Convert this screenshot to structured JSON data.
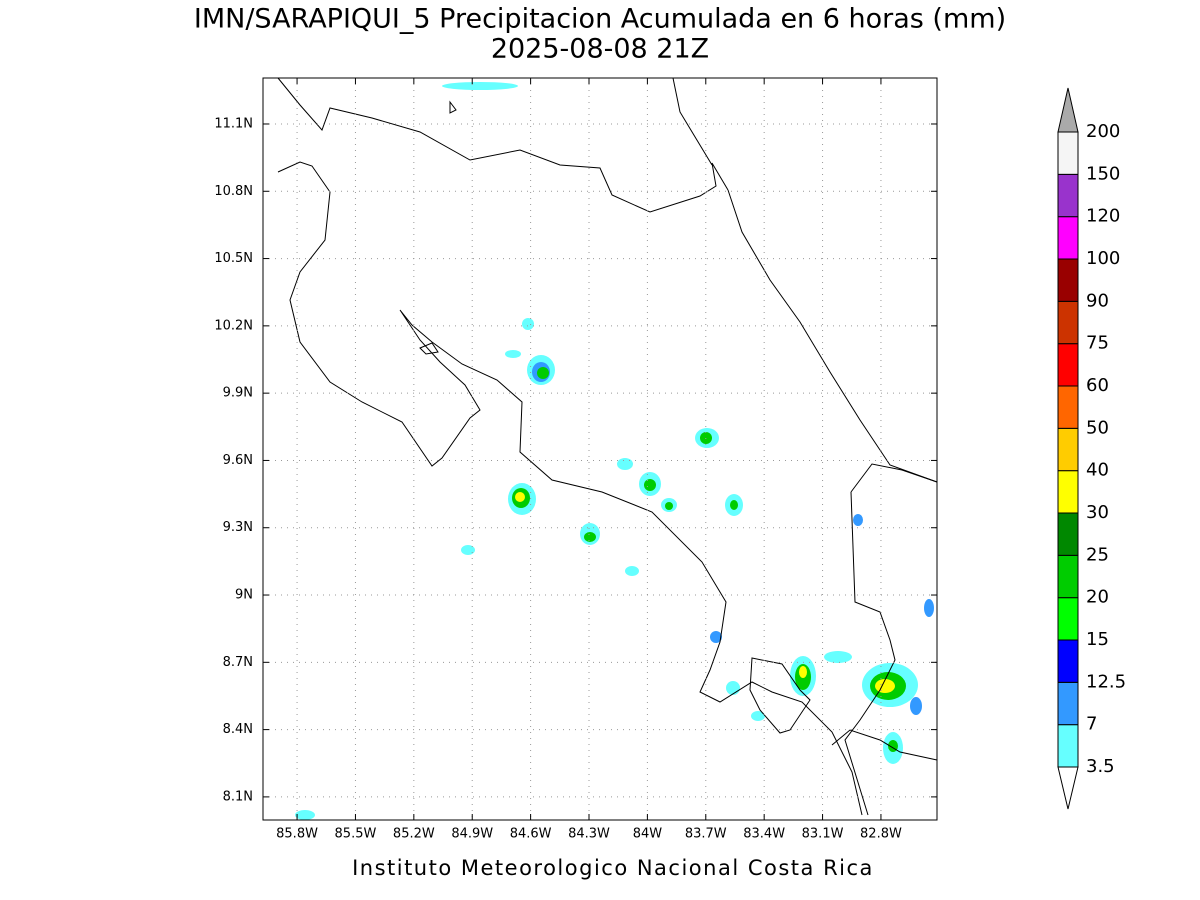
{
  "map": {
    "title": "IMN/SARAPIQUI_5 Precipitacion Acumulada en 6 horas (mm)",
    "subtitle": "2025-08-08 21Z",
    "footer": "Instituto Meteorologico Nacional Costa Rica",
    "xlim": [
      -85.975,
      -82.512
    ],
    "ylim": [
      7.997,
      11.305
    ],
    "xticks": [
      {
        "value": -85.8,
        "label": "85.8W"
      },
      {
        "value": -85.5,
        "label": "85.5W"
      },
      {
        "value": -85.2,
        "label": "85.2W"
      },
      {
        "value": -84.9,
        "label": "84.9W"
      },
      {
        "value": -84.6,
        "label": "84.6W"
      },
      {
        "value": -84.3,
        "label": "84.3W"
      },
      {
        "value": -84.0,
        "label": "84W"
      },
      {
        "value": -83.7,
        "label": "83.7W"
      },
      {
        "value": -83.4,
        "label": "83.4W"
      },
      {
        "value": -83.1,
        "label": "83.1W"
      },
      {
        "value": -82.8,
        "label": "82.8W"
      }
    ],
    "yticks": [
      {
        "value": 8.1,
        "label": "8.1N"
      },
      {
        "value": 8.4,
        "label": "8.4N"
      },
      {
        "value": 8.7,
        "label": "8.7N"
      },
      {
        "value": 9.0,
        "label": "9N"
      },
      {
        "value": 9.3,
        "label": "9.3N"
      },
      {
        "value": 9.6,
        "label": "9.6N"
      },
      {
        "value": 9.9,
        "label": "9.9N"
      },
      {
        "value": 10.2,
        "label": "10.2N"
      },
      {
        "value": 10.5,
        "label": "10.5N"
      },
      {
        "value": 10.8,
        "label": "10.8N"
      },
      {
        "value": 11.1,
        "label": "11.1N"
      }
    ],
    "grid": true,
    "colorbar": {
      "levels": [
        3.5,
        7,
        12.5,
        15,
        20,
        25,
        30,
        40,
        50,
        60,
        75,
        90,
        100,
        120,
        150,
        200
      ],
      "colors": [
        "#66ffff",
        "#3399ff",
        "#0000ff",
        "#00ff00",
        "#00cc00",
        "#008800",
        "#ffff00",
        "#ffcc00",
        "#ff6600",
        "#ff0000",
        "#cc3300",
        "#990000",
        "#ff00ff",
        "#9933cc",
        "#f5f5f5"
      ],
      "under_color": "#ffffff",
      "over_color": "#aaaaaa"
    }
  }
}
